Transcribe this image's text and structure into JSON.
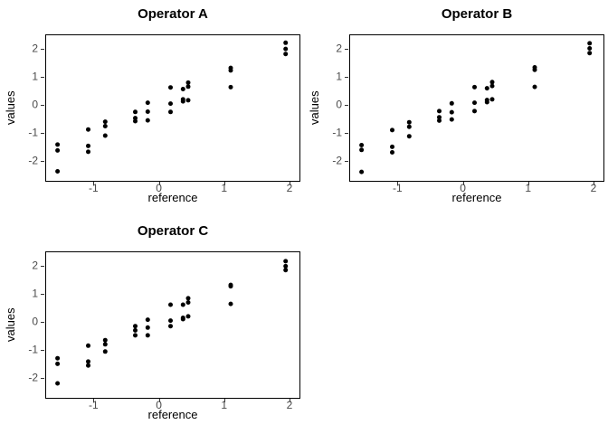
{
  "figure": {
    "background": "#ffffff",
    "point_color": "#000000",
    "panel_border_color": "#000000",
    "tick_color": "#333333",
    "tick_label_color": "#4a4a4a"
  },
  "chart_data": [
    {
      "type": "scatter",
      "title": "Operator A",
      "xlabel": "reference",
      "ylabel": "values",
      "xlim": [
        -1.724,
        2.152
      ],
      "ylim": [
        -2.72,
        2.5
      ],
      "x_ticks": [
        -1,
        0,
        1,
        2
      ],
      "y_ticks": [
        -2,
        -1,
        0,
        1,
        2
      ],
      "grid": false,
      "marker": "filled-circle",
      "x": [
        -1.55,
        -1.55,
        -1.55,
        -1.08,
        -1.08,
        -1.08,
        -0.82,
        -0.82,
        -0.82,
        -0.36,
        -0.36,
        -0.36,
        -0.17,
        -0.17,
        -0.17,
        0.18,
        0.18,
        0.18,
        0.37,
        0.37,
        0.37,
        0.45,
        0.45,
        0.45,
        1.1,
        1.1,
        1.1,
        1.94,
        1.94,
        1.94
      ],
      "y": [
        -1.42,
        -1.63,
        -2.38,
        -0.88,
        -1.47,
        -1.68,
        -0.6,
        -0.76,
        -1.1,
        -0.25,
        -0.47,
        -0.58,
        0.08,
        -0.24,
        -0.55,
        0.63,
        0.05,
        -0.25,
        0.57,
        0.2,
        0.13,
        0.8,
        0.66,
        0.17,
        1.33,
        1.24,
        0.64,
        2.23,
        2.01,
        1.83
      ]
    },
    {
      "type": "scatter",
      "title": "Operator B",
      "xlabel": "reference",
      "ylabel": "values",
      "xlim": [
        -1.724,
        2.152
      ],
      "ylim": [
        -2.72,
        2.5
      ],
      "x_ticks": [
        -1,
        0,
        1,
        2
      ],
      "y_ticks": [
        -2,
        -1,
        0,
        1,
        2
      ],
      "grid": false,
      "marker": "filled-circle",
      "x": [
        -1.55,
        -1.55,
        -1.55,
        -1.08,
        -1.08,
        -1.08,
        -0.82,
        -0.82,
        -0.82,
        -0.36,
        -0.36,
        -0.36,
        -0.17,
        -0.17,
        -0.17,
        0.18,
        0.18,
        0.18,
        0.37,
        0.37,
        0.37,
        0.45,
        0.45,
        0.45,
        1.1,
        1.1,
        1.1,
        1.94,
        1.94,
        1.94
      ],
      "y": [
        -1.44,
        -1.61,
        -2.4,
        -0.9,
        -1.5,
        -1.7,
        -0.62,
        -0.78,
        -1.12,
        -0.22,
        -0.44,
        -0.56,
        0.06,
        -0.26,
        -0.52,
        0.64,
        0.08,
        -0.22,
        0.6,
        0.18,
        0.1,
        0.82,
        0.68,
        0.2,
        1.35,
        1.26,
        0.65,
        2.21,
        2.03,
        1.86
      ]
    },
    {
      "type": "scatter",
      "title": "Operator C",
      "xlabel": "reference",
      "ylabel": "values",
      "xlim": [
        -1.724,
        2.152
      ],
      "ylim": [
        -2.72,
        2.5
      ],
      "x_ticks": [
        -1,
        0,
        1,
        2
      ],
      "y_ticks": [
        -2,
        -1,
        0,
        1,
        2
      ],
      "grid": false,
      "marker": "filled-circle",
      "x": [
        -1.55,
        -1.55,
        -1.55,
        -1.08,
        -1.08,
        -1.08,
        -0.82,
        -0.82,
        -0.82,
        -0.36,
        -0.36,
        -0.36,
        -0.17,
        -0.17,
        -0.17,
        0.18,
        0.18,
        0.18,
        0.37,
        0.37,
        0.37,
        0.45,
        0.45,
        0.45,
        1.1,
        1.1,
        1.1,
        1.94,
        1.94,
        1.94
      ],
      "y": [
        -1.3,
        -1.5,
        -2.2,
        -0.85,
        -1.42,
        -1.56,
        -0.65,
        -0.8,
        -1.06,
        -0.15,
        -0.3,
        -0.48,
        0.08,
        -0.2,
        -0.48,
        0.62,
        0.05,
        -0.15,
        0.62,
        0.15,
        0.1,
        0.85,
        0.7,
        0.2,
        1.33,
        1.28,
        0.65,
        2.18,
        2.0,
        1.86
      ]
    }
  ]
}
